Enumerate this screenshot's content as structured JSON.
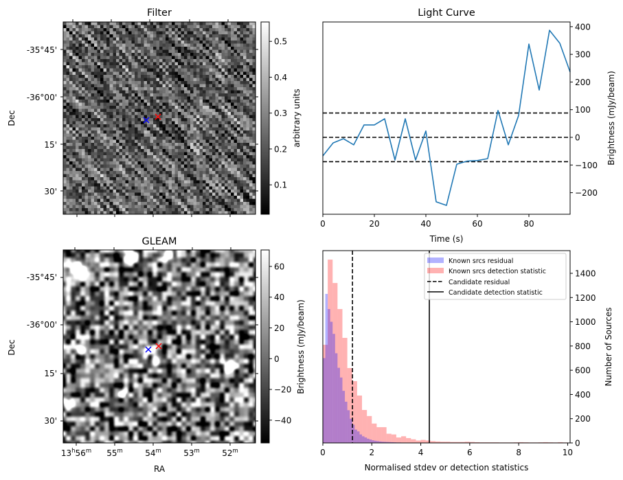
{
  "figure": {
    "panels": {
      "filter": {
        "title": "Filter",
        "ylabel": "Dec",
        "dec_ticks": [
          "-35°45'",
          "-36°00'",
          "15'",
          "30'"
        ],
        "colorbar": {
          "label": "arbitrary units",
          "ticks": [
            "0.1",
            "0.2",
            "0.3",
            "0.4",
            "0.5"
          ],
          "tick_values": [
            0.1,
            0.2,
            0.3,
            0.4,
            0.5
          ],
          "range": [
            0.018,
            0.554
          ]
        },
        "markers": [
          {
            "name": "candidate-position",
            "color": "#0000ff",
            "symbol": "x"
          },
          {
            "name": "known-source-position",
            "color": "#ff0000",
            "symbol": "x"
          }
        ]
      },
      "gleam": {
        "title": "GLEAM",
        "ylabel": "Dec",
        "xlabel": "RA",
        "dec_ticks": [
          "-35°45'",
          "-36°00'",
          "15'",
          "30'"
        ],
        "ra_ticks": [
          {
            "h": "13",
            "hsup": "h",
            "m": "56",
            "msup": "m"
          },
          {
            "h": "",
            "hsup": "",
            "m": "55",
            "msup": "m"
          },
          {
            "h": "",
            "hsup": "",
            "m": "54",
            "msup": "m"
          },
          {
            "h": "",
            "hsup": "",
            "m": "53",
            "msup": "m"
          },
          {
            "h": "",
            "hsup": "",
            "m": "52",
            "msup": "m"
          }
        ],
        "colorbar": {
          "label": "Brightness (mJy/beam)",
          "ticks": [
            "−40",
            "−20",
            "0",
            "20",
            "40",
            "60"
          ],
          "tick_values": [
            -40,
            -20,
            0,
            20,
            40,
            60
          ],
          "range": [
            -54.8,
            70.7
          ]
        },
        "markers": [
          {
            "name": "candidate-position",
            "color": "#0000ff",
            "symbol": "x"
          },
          {
            "name": "known-source-position",
            "color": "#ff0000",
            "symbol": "x"
          }
        ]
      }
    }
  },
  "chart_data": [
    {
      "type": "line",
      "title": "Light Curve",
      "xlabel": "Time (s)",
      "ylabel": "Brightness (mJy/beam)",
      "yaxis_side": "right",
      "xlim": [
        0,
        96
      ],
      "ylim": [
        -278,
        417
      ],
      "xticks": [
        0,
        20,
        40,
        60,
        80
      ],
      "yticks": [
        -200,
        -100,
        0,
        100,
        200,
        300,
        400
      ],
      "xtick_labels": [
        "0",
        "20",
        "40",
        "60",
        "80"
      ],
      "ytick_labels": [
        "−200",
        "−100",
        "0",
        "100",
        "200",
        "300",
        "400"
      ],
      "grid": false,
      "series": [
        {
          "name": "light-curve",
          "color": "#1f77b4",
          "x": [
            0,
            4,
            8,
            12,
            16,
            20,
            24,
            28,
            32,
            36,
            40,
            44,
            48,
            52,
            56,
            60,
            64,
            68,
            72,
            76,
            80,
            84,
            88,
            92,
            96
          ],
          "y": [
            -67,
            -20,
            -5,
            -27,
            45,
            45,
            67,
            -82,
            67,
            -82,
            23,
            -233,
            -246,
            -97,
            -86,
            -84,
            -77,
            97,
            -27,
            79,
            337,
            171,
            387,
            340,
            236
          ]
        }
      ],
      "hlines": [
        {
          "name": "upper-threshold",
          "y": 88,
          "style": "dashed",
          "color": "#000000"
        },
        {
          "name": "mean-line",
          "y": 0,
          "style": "dashed",
          "color": "#000000"
        },
        {
          "name": "lower-threshold",
          "y": -88,
          "style": "dashed",
          "color": "#000000"
        }
      ]
    },
    {
      "type": "bar",
      "subtype": "histogram",
      "title": "",
      "xlabel": "Normalised stdev or detection statistics",
      "ylabel": "Number of Sources",
      "yaxis_side": "right",
      "xlim": [
        0,
        10.1
      ],
      "ylim": [
        0,
        1587
      ],
      "xticks": [
        0,
        2,
        4,
        6,
        8,
        10
      ],
      "yticks": [
        0,
        200,
        400,
        600,
        800,
        1000,
        1200,
        1400
      ],
      "xtick_labels": [
        "0",
        "2",
        "4",
        "6",
        "8",
        "10"
      ],
      "ytick_labels": [
        "0",
        "200",
        "400",
        "600",
        "800",
        "1000",
        "1200",
        "1400"
      ],
      "grid": false,
      "legend": {
        "placement": "top-right",
        "entries": [
          {
            "label": "Known srcs residual",
            "kind": "patch",
            "color": "#0000ff",
            "alpha": 0.3
          },
          {
            "label": "Known srcs detection statistic",
            "kind": "patch",
            "color": "#ff0000",
            "alpha": 0.3
          },
          {
            "label": "Candidate residual",
            "kind": "line",
            "style": "dashed",
            "color": "#000000"
          },
          {
            "label": "Candidate detection statistic",
            "kind": "line",
            "style": "solid",
            "color": "#000000"
          }
        ]
      },
      "series": [
        {
          "name": "Known srcs residual",
          "color": "#0000ff",
          "alpha": 0.3,
          "bin_width": 0.1,
          "bin_start": 0,
          "values": [
            700,
            1230,
            1105,
            1000,
            900,
            740,
            620,
            540,
            430,
            340,
            270,
            200,
            150,
            110,
            95,
            70,
            55,
            45,
            35,
            28,
            22,
            18,
            15,
            12,
            10,
            9,
            8,
            7,
            6,
            5,
            4,
            4,
            3,
            3,
            2,
            2,
            2,
            2,
            1,
            1,
            1,
            1,
            1,
            1,
            1,
            1,
            1,
            1,
            0,
            0,
            1,
            0,
            0,
            0,
            1
          ]
        },
        {
          "name": "Known srcs detection statistic",
          "color": "#ff0000",
          "alpha": 0.3,
          "bin_width": 0.2,
          "bin_start": 0,
          "values": [
            810,
            1513,
            1320,
            1105,
            867,
            618,
            510,
            391,
            272,
            222,
            160,
            130,
            130,
            76,
            70,
            45,
            55,
            40,
            30,
            20,
            25,
            20,
            15,
            12,
            10,
            10,
            8,
            8,
            8,
            10,
            8,
            6,
            5,
            5,
            5,
            5,
            4,
            4,
            4,
            5,
            6,
            5,
            4,
            4,
            5,
            6,
            5,
            4,
            6,
            4
          ]
        }
      ],
      "vlines": [
        {
          "name": "Candidate residual",
          "x": 1.21,
          "style": "dashed",
          "color": "#000000"
        },
        {
          "name": "Candidate detection statistic",
          "x": 4.35,
          "style": "solid",
          "color": "#000000"
        }
      ]
    }
  ]
}
